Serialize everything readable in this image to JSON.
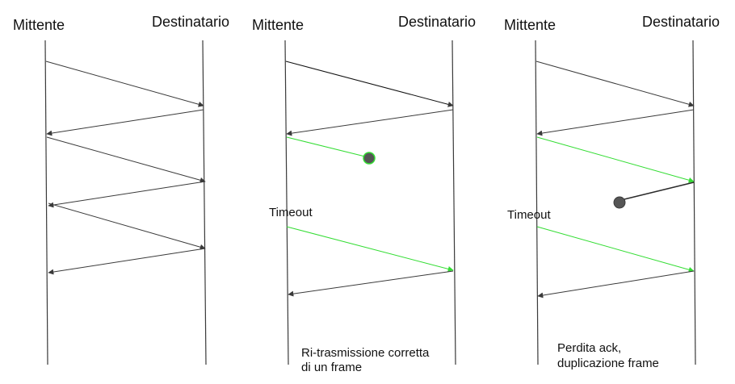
{
  "colors": {
    "background": "#ffffff",
    "line": "#3a3a3a",
    "frame_ok": "#3a3a3a",
    "frame_highlight": "#33dd33",
    "lost_marker": "#555555",
    "lost_marker_ring_green": "#33dd33"
  },
  "panels": [
    {
      "sender_label": "Mittente",
      "receiver_label": "Destinatario",
      "timeout_label": "",
      "caption_line1": "",
      "caption_line2": ""
    },
    {
      "sender_label": "Mittente",
      "receiver_label": "Destinatario",
      "timeout_label": "Timeout",
      "caption_line1": "Ri-trasmissione corretta",
      "caption_line2": "di un frame"
    },
    {
      "sender_label": "Mittente",
      "receiver_label": "Destinatario",
      "timeout_label": "Timeout",
      "caption_line1": "Perdita ack,",
      "caption_line2": "duplicazione frame"
    }
  ]
}
